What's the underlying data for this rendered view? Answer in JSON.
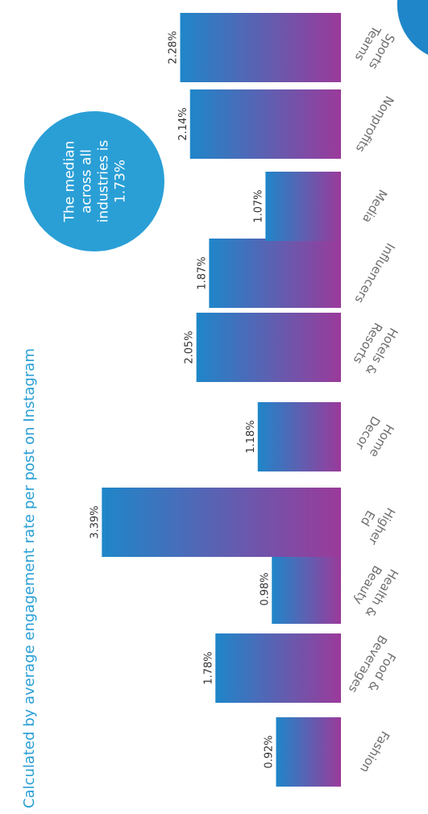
{
  "chart_data": {
    "type": "bar",
    "title": "",
    "subtitle": "Calculated by average engagement rate per post on Instagram",
    "categories": [
      [
        "Fashion"
      ],
      [
        "Food &",
        "Beverages"
      ],
      [
        "Health &",
        "Beauty"
      ],
      [
        "Higher",
        "Ed"
      ],
      [
        "Home",
        "Decor"
      ],
      [
        "Hotels &",
        "Resorts"
      ],
      [
        "Influencers"
      ],
      [
        "Media"
      ],
      [
        "Nonprofits"
      ],
      [
        "Sports",
        "Teams"
      ]
    ],
    "values": [
      0.92,
      1.78,
      0.98,
      3.39,
      1.18,
      2.05,
      1.87,
      1.07,
      2.14,
      2.28
    ],
    "value_labels": [
      "0.92%",
      "1.78%",
      "0.98%",
      "3.39%",
      "1.18%",
      "2.05%",
      "1.87%",
      "1.07%",
      "2.14%",
      "2.28%"
    ],
    "unit": "%",
    "annotation": {
      "lines": [
        "The median",
        "across all",
        "industries is",
        "1.73%"
      ]
    },
    "orientation": "rotated",
    "colors": {
      "bar_gradient_start": "#1f86c9",
      "bar_gradient_end": "#9b3a9a",
      "subtitle": "#2a9fd6",
      "median_circle": "#2a9fd6",
      "value_text": "#333333",
      "category_text": "#6e6e6e"
    }
  }
}
